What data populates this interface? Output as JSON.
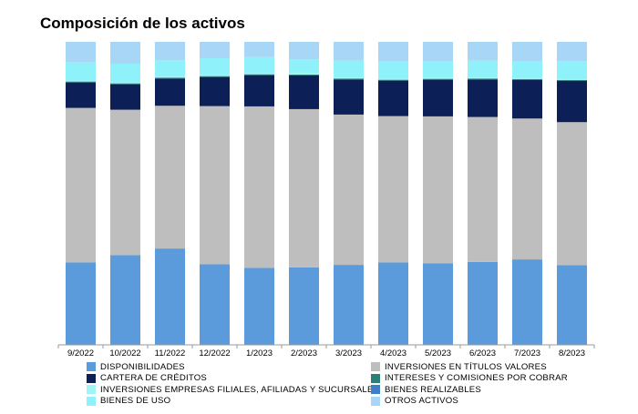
{
  "chart_data": {
    "type": "bar",
    "stacked": true,
    "normalized": true,
    "title": "Composición de los activos",
    "xlabel": "",
    "ylabel": "",
    "ylim": [
      0,
      100
    ],
    "grid": false,
    "legend_position": "bottom",
    "categories": [
      "9/2022",
      "10/2022",
      "11/2022",
      "12/2022",
      "1/2023",
      "2/2023",
      "3/2023",
      "4/2023",
      "5/2023",
      "6/2023",
      "7/2023",
      "8/2023"
    ],
    "series": [
      {
        "name": "DISPONIBILIDADES",
        "color": "#5b9bdc",
        "values": [
          27.2,
          29.6,
          31.8,
          26.6,
          25.4,
          25.6,
          26.4,
          27.2,
          26.9,
          27.4,
          28.2,
          26.3
        ]
      },
      {
        "name": "INVERSIONES EN TÍTULOS VALORES",
        "color": "#bebebe",
        "values": [
          51.0,
          48.0,
          47.1,
          52.2,
          53.3,
          52.2,
          49.6,
          48.3,
          48.5,
          47.8,
          46.5,
          47.2
        ]
      },
      {
        "name": "CARTERA DE CRÉDITOS",
        "color": "#0c1f56",
        "values": [
          8.4,
          8.4,
          9.0,
          9.6,
          10.3,
          11.1,
          11.6,
          11.7,
          12.1,
          12.4,
          12.7,
          13.6
        ]
      },
      {
        "name": "INTERESES Y COMISIONES POR COBRAR",
        "color": "#2a7f78",
        "values": [
          0.3,
          0.3,
          0.3,
          0.3,
          0.3,
          0.3,
          0.3,
          0.3,
          0.3,
          0.3,
          0.3,
          0.3
        ]
      },
      {
        "name": "INVERSIONES EMPRESAS FILIALES, AFILIADAS Y SUCURSALES",
        "color": "#9ef5f5",
        "values": [
          0.3,
          0.3,
          0.3,
          0.3,
          0.3,
          0.6,
          0.3,
          0.3,
          0.3,
          0.3,
          0.3,
          0.3
        ]
      },
      {
        "name": "BIENES REALIZABLES",
        "color": "#3a7fc8",
        "values": [
          0,
          0,
          0,
          0,
          0,
          0,
          0,
          0,
          0,
          0,
          0,
          0
        ]
      },
      {
        "name": "BIENES DE USO",
        "color": "#8ff2fb",
        "values": [
          6.0,
          6.2,
          5.4,
          5.6,
          5.4,
          4.4,
          5.6,
          5.9,
          5.6,
          5.6,
          5.7,
          5.9
        ]
      },
      {
        "name": "OTROS ACTIVOS",
        "color": "#a8d6f6",
        "values": [
          6.8,
          7.2,
          6.1,
          5.4,
          5.0,
          5.8,
          6.2,
          6.3,
          6.3,
          6.2,
          6.3,
          6.4
        ]
      }
    ]
  }
}
